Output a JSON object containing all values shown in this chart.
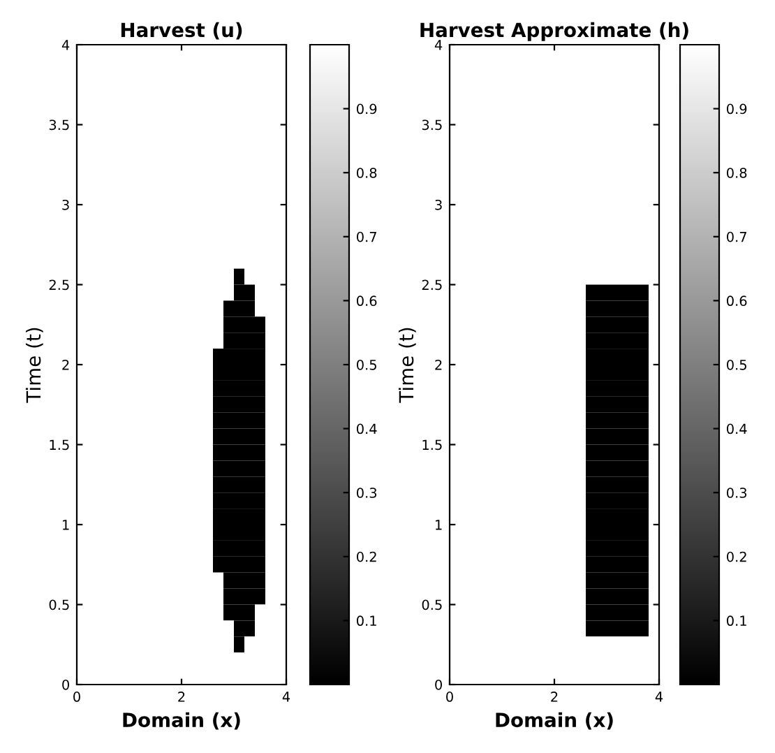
{
  "chart_data": [
    {
      "type": "heatmap",
      "title": "Harvest (u)",
      "xlabel": "Domain (x)",
      "ylabel": "Time (t)",
      "x": [
        0.1,
        0.3,
        0.5,
        0.7,
        0.9,
        1.1,
        1.3,
        1.5,
        1.7,
        1.9,
        2.1,
        2.3,
        2.5,
        2.7,
        2.9,
        3.1,
        3.3,
        3.5,
        3.7,
        3.9
      ],
      "y": [
        3.95,
        3.85,
        3.75,
        3.65,
        3.55,
        3.45,
        3.35,
        3.25,
        3.15,
        3.05,
        2.95,
        2.85,
        2.75,
        2.65,
        2.55,
        2.45,
        2.35,
        2.25,
        2.15,
        2.05,
        1.95,
        1.85,
        1.75,
        1.65,
        1.55,
        1.45,
        1.35,
        1.25,
        1.15,
        1.05,
        0.95,
        0.85,
        0.75,
        0.65,
        0.55,
        0.45,
        0.35,
        0.25,
        0.15,
        0.05
      ],
      "cells": [
        [
          1,
          1,
          1,
          1,
          1,
          1,
          1,
          1,
          1,
          1,
          1,
          1,
          1,
          1,
          1,
          1,
          1,
          1,
          1,
          1
        ],
        [
          1,
          1,
          1,
          1,
          1,
          1,
          1,
          1,
          1,
          1,
          1,
          1,
          1,
          1,
          1,
          1,
          1,
          1,
          1,
          1
        ],
        [
          1,
          1,
          1,
          1,
          1,
          1,
          1,
          1,
          1,
          1,
          1,
          1,
          1,
          1,
          1,
          1,
          1,
          1,
          1,
          1
        ],
        [
          1,
          1,
          1,
          1,
          1,
          1,
          1,
          1,
          1,
          1,
          1,
          1,
          1,
          1,
          1,
          1,
          1,
          1,
          1,
          1
        ],
        [
          1,
          1,
          1,
          1,
          1,
          1,
          1,
          1,
          1,
          1,
          1,
          1,
          1,
          1,
          1,
          1,
          1,
          1,
          1,
          1
        ],
        [
          1,
          1,
          1,
          1,
          1,
          1,
          1,
          1,
          1,
          1,
          1,
          1,
          1,
          1,
          1,
          1,
          1,
          1,
          1,
          1
        ],
        [
          1,
          1,
          1,
          1,
          1,
          1,
          1,
          1,
          1,
          1,
          1,
          1,
          1,
          1,
          1,
          1,
          1,
          1,
          1,
          1
        ],
        [
          1,
          1,
          1,
          1,
          1,
          1,
          1,
          1,
          1,
          1,
          1,
          1,
          1,
          1,
          1,
          1,
          1,
          1,
          1,
          1
        ],
        [
          1,
          1,
          1,
          1,
          1,
          1,
          1,
          1,
          1,
          1,
          1,
          1,
          1,
          1,
          1,
          1,
          1,
          1,
          1,
          1
        ],
        [
          1,
          1,
          1,
          1,
          1,
          1,
          1,
          1,
          1,
          1,
          1,
          1,
          1,
          1,
          1,
          1,
          1,
          1,
          1,
          1
        ],
        [
          1,
          1,
          1,
          1,
          1,
          1,
          1,
          1,
          1,
          1,
          1,
          1,
          1,
          1,
          1,
          1,
          1,
          1,
          1,
          1
        ],
        [
          1,
          1,
          1,
          1,
          1,
          1,
          1,
          1,
          1,
          1,
          1,
          1,
          1,
          1,
          1,
          1,
          1,
          1,
          1,
          1
        ],
        [
          1,
          1,
          1,
          1,
          1,
          1,
          1,
          1,
          1,
          1,
          1,
          1,
          1,
          1,
          1,
          1,
          1,
          1,
          1,
          1
        ],
        [
          1,
          1,
          1,
          1,
          1,
          1,
          1,
          1,
          1,
          1,
          1,
          1,
          1,
          1,
          1,
          1,
          1,
          1,
          1,
          1
        ],
        [
          1,
          1,
          1,
          1,
          1,
          1,
          1,
          1,
          1,
          1,
          1,
          1,
          1,
          1,
          1,
          0,
          1,
          1,
          1,
          1
        ],
        [
          1,
          1,
          1,
          1,
          1,
          1,
          1,
          1,
          1,
          1,
          1,
          1,
          1,
          1,
          1,
          0,
          0,
          1,
          1,
          1
        ],
        [
          1,
          1,
          1,
          1,
          1,
          1,
          1,
          1,
          1,
          1,
          1,
          1,
          1,
          1,
          0,
          0,
          0,
          1,
          1,
          1
        ],
        [
          1,
          1,
          1,
          1,
          1,
          1,
          1,
          1,
          1,
          1,
          1,
          1,
          1,
          1,
          0,
          0,
          0,
          0,
          1,
          1
        ],
        [
          1,
          1,
          1,
          1,
          1,
          1,
          1,
          1,
          1,
          1,
          1,
          1,
          1,
          1,
          0,
          0,
          0,
          0,
          1,
          1
        ],
        [
          1,
          1,
          1,
          1,
          1,
          1,
          1,
          1,
          1,
          1,
          1,
          1,
          1,
          0,
          0,
          0,
          0,
          0,
          1,
          1
        ],
        [
          1,
          1,
          1,
          1,
          1,
          1,
          1,
          1,
          1,
          1,
          1,
          1,
          1,
          0,
          0,
          0,
          0,
          0,
          1,
          1
        ],
        [
          1,
          1,
          1,
          1,
          1,
          1,
          1,
          1,
          1,
          1,
          1,
          1,
          1,
          0,
          0,
          0,
          0,
          0,
          1,
          1
        ],
        [
          1,
          1,
          1,
          1,
          1,
          1,
          1,
          1,
          1,
          1,
          1,
          1,
          1,
          0,
          0,
          0,
          0,
          0,
          1,
          1
        ],
        [
          1,
          1,
          1,
          1,
          1,
          1,
          1,
          1,
          1,
          1,
          1,
          1,
          1,
          0,
          0,
          0,
          0,
          0,
          1,
          1
        ],
        [
          1,
          1,
          1,
          1,
          1,
          1,
          1,
          1,
          1,
          1,
          1,
          1,
          1,
          0,
          0,
          0,
          0,
          0,
          1,
          1
        ],
        [
          1,
          1,
          1,
          1,
          1,
          1,
          1,
          1,
          1,
          1,
          1,
          1,
          1,
          0,
          0,
          0,
          0,
          0,
          1,
          1
        ],
        [
          1,
          1,
          1,
          1,
          1,
          1,
          1,
          1,
          1,
          1,
          1,
          1,
          1,
          0,
          0,
          0,
          0,
          0,
          1,
          1
        ],
        [
          1,
          1,
          1,
          1,
          1,
          1,
          1,
          1,
          1,
          1,
          1,
          1,
          1,
          0,
          0,
          0,
          0,
          0,
          1,
          1
        ],
        [
          1,
          1,
          1,
          1,
          1,
          1,
          1,
          1,
          1,
          1,
          1,
          1,
          1,
          0,
          0,
          0,
          0,
          0,
          1,
          1
        ],
        [
          1,
          1,
          1,
          1,
          1,
          1,
          1,
          1,
          1,
          1,
          1,
          1,
          1,
          0,
          0,
          0,
          0,
          0,
          1,
          1
        ],
        [
          1,
          1,
          1,
          1,
          1,
          1,
          1,
          1,
          1,
          1,
          1,
          1,
          1,
          0,
          0,
          0,
          0,
          0,
          1,
          1
        ],
        [
          1,
          1,
          1,
          1,
          1,
          1,
          1,
          1,
          1,
          1,
          1,
          1,
          1,
          0,
          0,
          0,
          0,
          0,
          1,
          1
        ],
        [
          1,
          1,
          1,
          1,
          1,
          1,
          1,
          1,
          1,
          1,
          1,
          1,
          1,
          0,
          0,
          0,
          0,
          0,
          1,
          1
        ],
        [
          1,
          1,
          1,
          1,
          1,
          1,
          1,
          1,
          1,
          1,
          1,
          1,
          1,
          1,
          0,
          0,
          0,
          0,
          1,
          1
        ],
        [
          1,
          1,
          1,
          1,
          1,
          1,
          1,
          1,
          1,
          1,
          1,
          1,
          1,
          1,
          0,
          0,
          0,
          0,
          1,
          1
        ],
        [
          1,
          1,
          1,
          1,
          1,
          1,
          1,
          1,
          1,
          1,
          1,
          1,
          1,
          1,
          0,
          0,
          0,
          1,
          1,
          1
        ],
        [
          1,
          1,
          1,
          1,
          1,
          1,
          1,
          1,
          1,
          1,
          1,
          1,
          1,
          1,
          1,
          0,
          0,
          1,
          1,
          1
        ],
        [
          1,
          1,
          1,
          1,
          1,
          1,
          1,
          1,
          1,
          1,
          1,
          1,
          1,
          1,
          1,
          0,
          1,
          1,
          1,
          1
        ],
        [
          1,
          1,
          1,
          1,
          1,
          1,
          1,
          1,
          1,
          1,
          1,
          1,
          1,
          1,
          1,
          1,
          1,
          1,
          1,
          1
        ],
        [
          1,
          1,
          1,
          1,
          1,
          1,
          1,
          1,
          1,
          1,
          1,
          1,
          1,
          1,
          1,
          1,
          1,
          1,
          1,
          1
        ]
      ],
      "xlim": [
        0,
        4
      ],
      "ylim": [
        0,
        4
      ],
      "xticks": [
        0,
        2,
        4
      ],
      "yticks": [
        0,
        0.5,
        1,
        1.5,
        2,
        2.5,
        3,
        3.5,
        4
      ],
      "clim": [
        0,
        1
      ],
      "cticks": [
        0.1,
        0.2,
        0.3,
        0.4,
        0.5,
        0.6,
        0.7,
        0.8,
        0.9
      ],
      "grid": false
    },
    {
      "type": "heatmap",
      "title": "Harvest Approximate (h)",
      "xlabel": "Domain (x)",
      "ylabel": "Time (t)",
      "x": [
        0.1,
        0.3,
        0.5,
        0.7,
        0.9,
        1.1,
        1.3,
        1.5,
        1.7,
        1.9,
        2.1,
        2.3,
        2.5,
        2.7,
        2.9,
        3.1,
        3.3,
        3.5,
        3.7,
        3.9
      ],
      "y": [
        3.95,
        3.85,
        3.75,
        3.65,
        3.55,
        3.45,
        3.35,
        3.25,
        3.15,
        3.05,
        2.95,
        2.85,
        2.75,
        2.65,
        2.55,
        2.45,
        2.35,
        2.25,
        2.15,
        2.05,
        1.95,
        1.85,
        1.75,
        1.65,
        1.55,
        1.45,
        1.35,
        1.25,
        1.15,
        1.05,
        0.95,
        0.85,
        0.75,
        0.65,
        0.55,
        0.45,
        0.35,
        0.25,
        0.15,
        0.05
      ],
      "cells": [
        [
          1,
          1,
          1,
          1,
          1,
          1,
          1,
          1,
          1,
          1,
          1,
          1,
          1,
          1,
          1,
          1,
          1,
          1,
          1,
          1
        ],
        [
          1,
          1,
          1,
          1,
          1,
          1,
          1,
          1,
          1,
          1,
          1,
          1,
          1,
          1,
          1,
          1,
          1,
          1,
          1,
          1
        ],
        [
          1,
          1,
          1,
          1,
          1,
          1,
          1,
          1,
          1,
          1,
          1,
          1,
          1,
          1,
          1,
          1,
          1,
          1,
          1,
          1
        ],
        [
          1,
          1,
          1,
          1,
          1,
          1,
          1,
          1,
          1,
          1,
          1,
          1,
          1,
          1,
          1,
          1,
          1,
          1,
          1,
          1
        ],
        [
          1,
          1,
          1,
          1,
          1,
          1,
          1,
          1,
          1,
          1,
          1,
          1,
          1,
          1,
          1,
          1,
          1,
          1,
          1,
          1
        ],
        [
          1,
          1,
          1,
          1,
          1,
          1,
          1,
          1,
          1,
          1,
          1,
          1,
          1,
          1,
          1,
          1,
          1,
          1,
          1,
          1
        ],
        [
          1,
          1,
          1,
          1,
          1,
          1,
          1,
          1,
          1,
          1,
          1,
          1,
          1,
          1,
          1,
          1,
          1,
          1,
          1,
          1
        ],
        [
          1,
          1,
          1,
          1,
          1,
          1,
          1,
          1,
          1,
          1,
          1,
          1,
          1,
          1,
          1,
          1,
          1,
          1,
          1,
          1
        ],
        [
          1,
          1,
          1,
          1,
          1,
          1,
          1,
          1,
          1,
          1,
          1,
          1,
          1,
          1,
          1,
          1,
          1,
          1,
          1,
          1
        ],
        [
          1,
          1,
          1,
          1,
          1,
          1,
          1,
          1,
          1,
          1,
          1,
          1,
          1,
          1,
          1,
          1,
          1,
          1,
          1,
          1
        ],
        [
          1,
          1,
          1,
          1,
          1,
          1,
          1,
          1,
          1,
          1,
          1,
          1,
          1,
          1,
          1,
          1,
          1,
          1,
          1,
          1
        ],
        [
          1,
          1,
          1,
          1,
          1,
          1,
          1,
          1,
          1,
          1,
          1,
          1,
          1,
          1,
          1,
          1,
          1,
          1,
          1,
          1
        ],
        [
          1,
          1,
          1,
          1,
          1,
          1,
          1,
          1,
          1,
          1,
          1,
          1,
          1,
          1,
          1,
          1,
          1,
          1,
          1,
          1
        ],
        [
          1,
          1,
          1,
          1,
          1,
          1,
          1,
          1,
          1,
          1,
          1,
          1,
          1,
          1,
          1,
          1,
          1,
          1,
          1,
          1
        ],
        [
          1,
          1,
          1,
          1,
          1,
          1,
          1,
          1,
          1,
          1,
          1,
          1,
          1,
          1,
          1,
          1,
          1,
          1,
          1,
          1
        ],
        [
          1,
          1,
          1,
          1,
          1,
          1,
          1,
          1,
          1,
          1,
          1,
          1,
          1,
          0,
          0,
          0,
          0,
          0,
          0,
          1
        ],
        [
          1,
          1,
          1,
          1,
          1,
          1,
          1,
          1,
          1,
          1,
          1,
          1,
          1,
          0,
          0,
          0,
          0,
          0,
          0,
          1
        ],
        [
          1,
          1,
          1,
          1,
          1,
          1,
          1,
          1,
          1,
          1,
          1,
          1,
          1,
          0,
          0,
          0,
          0,
          0,
          0,
          1
        ],
        [
          1,
          1,
          1,
          1,
          1,
          1,
          1,
          1,
          1,
          1,
          1,
          1,
          1,
          0,
          0,
          0,
          0,
          0,
          0,
          1
        ],
        [
          1,
          1,
          1,
          1,
          1,
          1,
          1,
          1,
          1,
          1,
          1,
          1,
          1,
          0,
          0,
          0,
          0,
          0,
          0,
          1
        ],
        [
          1,
          1,
          1,
          1,
          1,
          1,
          1,
          1,
          1,
          1,
          1,
          1,
          1,
          0,
          0,
          0,
          0,
          0,
          0,
          1
        ],
        [
          1,
          1,
          1,
          1,
          1,
          1,
          1,
          1,
          1,
          1,
          1,
          1,
          1,
          0,
          0,
          0,
          0,
          0,
          0,
          1
        ],
        [
          1,
          1,
          1,
          1,
          1,
          1,
          1,
          1,
          1,
          1,
          1,
          1,
          1,
          0,
          0,
          0,
          0,
          0,
          0,
          1
        ],
        [
          1,
          1,
          1,
          1,
          1,
          1,
          1,
          1,
          1,
          1,
          1,
          1,
          1,
          0,
          0,
          0,
          0,
          0,
          0,
          1
        ],
        [
          1,
          1,
          1,
          1,
          1,
          1,
          1,
          1,
          1,
          1,
          1,
          1,
          1,
          0,
          0,
          0,
          0,
          0,
          0,
          1
        ],
        [
          1,
          1,
          1,
          1,
          1,
          1,
          1,
          1,
          1,
          1,
          1,
          1,
          1,
          0,
          0,
          0,
          0,
          0,
          0,
          1
        ],
        [
          1,
          1,
          1,
          1,
          1,
          1,
          1,
          1,
          1,
          1,
          1,
          1,
          1,
          0,
          0,
          0,
          0,
          0,
          0,
          1
        ],
        [
          1,
          1,
          1,
          1,
          1,
          1,
          1,
          1,
          1,
          1,
          1,
          1,
          1,
          0,
          0,
          0,
          0,
          0,
          0,
          1
        ],
        [
          1,
          1,
          1,
          1,
          1,
          1,
          1,
          1,
          1,
          1,
          1,
          1,
          1,
          0,
          0,
          0,
          0,
          0,
          0,
          1
        ],
        [
          1,
          1,
          1,
          1,
          1,
          1,
          1,
          1,
          1,
          1,
          1,
          1,
          1,
          0,
          0,
          0,
          0,
          0,
          0,
          1
        ],
        [
          1,
          1,
          1,
          1,
          1,
          1,
          1,
          1,
          1,
          1,
          1,
          1,
          1,
          0,
          0,
          0,
          0,
          0,
          0,
          1
        ],
        [
          1,
          1,
          1,
          1,
          1,
          1,
          1,
          1,
          1,
          1,
          1,
          1,
          1,
          0,
          0,
          0,
          0,
          0,
          0,
          1
        ],
        [
          1,
          1,
          1,
          1,
          1,
          1,
          1,
          1,
          1,
          1,
          1,
          1,
          1,
          0,
          0,
          0,
          0,
          0,
          0,
          1
        ],
        [
          1,
          1,
          1,
          1,
          1,
          1,
          1,
          1,
          1,
          1,
          1,
          1,
          1,
          0,
          0,
          0,
          0,
          0,
          0,
          1
        ],
        [
          1,
          1,
          1,
          1,
          1,
          1,
          1,
          1,
          1,
          1,
          1,
          1,
          1,
          0,
          0,
          0,
          0,
          0,
          0,
          1
        ],
        [
          1,
          1,
          1,
          1,
          1,
          1,
          1,
          1,
          1,
          1,
          1,
          1,
          1,
          0,
          0,
          0,
          0,
          0,
          0,
          1
        ],
        [
          1,
          1,
          1,
          1,
          1,
          1,
          1,
          1,
          1,
          1,
          1,
          1,
          1,
          0,
          0,
          0,
          0,
          0,
          0,
          1
        ],
        [
          1,
          1,
          1,
          1,
          1,
          1,
          1,
          1,
          1,
          1,
          1,
          1,
          1,
          1,
          1,
          1,
          1,
          1,
          1,
          1
        ],
        [
          1,
          1,
          1,
          1,
          1,
          1,
          1,
          1,
          1,
          1,
          1,
          1,
          1,
          1,
          1,
          1,
          1,
          1,
          1,
          1
        ],
        [
          1,
          1,
          1,
          1,
          1,
          1,
          1,
          1,
          1,
          1,
          1,
          1,
          1,
          1,
          1,
          1,
          1,
          1,
          1,
          1
        ]
      ],
      "xlim": [
        0,
        4
      ],
      "ylim": [
        0,
        4
      ],
      "xticks": [
        0,
        2,
        4
      ],
      "yticks": [
        0,
        0.5,
        1,
        1.5,
        2,
        2.5,
        3,
        3.5,
        4
      ],
      "clim": [
        0,
        1
      ],
      "cticks": [
        0.1,
        0.2,
        0.3,
        0.4,
        0.5,
        0.6,
        0.7,
        0.8,
        0.9
      ],
      "grid": false
    }
  ]
}
